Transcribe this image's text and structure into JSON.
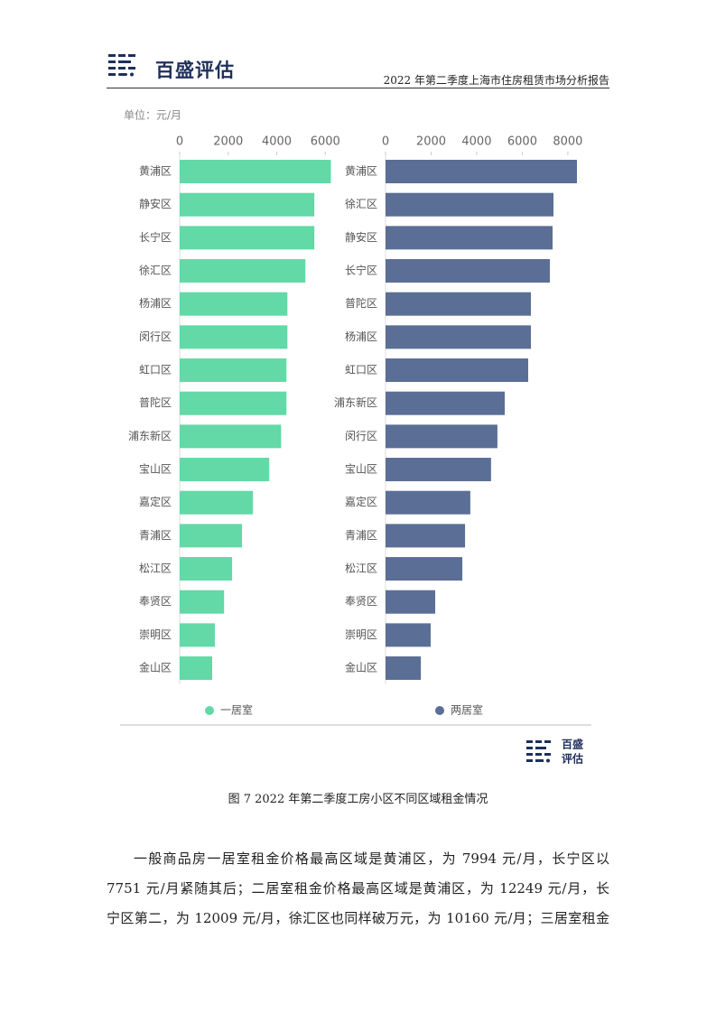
{
  "header": {
    "logo": "百盛评估",
    "title": "2022 年第二季度上海市住房租赁市场分析报告"
  },
  "chart_data": [
    {
      "type": "bar",
      "orientation": "horizontal",
      "unit": "单位：元/月",
      "categories": [
        "黄浦区",
        "静安区",
        "长宁区",
        "徐汇区",
        "杨浦区",
        "闵行区",
        "虹口区",
        "普陀区",
        "浦东新区",
        "宝山区",
        "嘉定区",
        "青浦区",
        "松江区",
        "奉贤区",
        "崇明区",
        "金山区"
      ],
      "series": [
        {
          "name": "一居室",
          "color": "#62d9a6",
          "values": [
            6230,
            5550,
            5550,
            5180,
            4440,
            4440,
            4400,
            4400,
            4180,
            3690,
            3020,
            2570,
            2160,
            1830,
            1450,
            1340
          ]
        }
      ],
      "xlim": [
        0,
        6400
      ],
      "xticks": [
        0,
        2000,
        4000,
        6000
      ]
    },
    {
      "type": "bar",
      "orientation": "horizontal",
      "categories": [
        "黄浦区",
        "徐汇区",
        "静安区",
        "长宁区",
        "普陀区",
        "杨浦区",
        "虹口区",
        "浦东新区",
        "闵行区",
        "宝山区",
        "嘉定区",
        "青浦区",
        "松江区",
        "奉贤区",
        "崇明区",
        "金山区"
      ],
      "series": [
        {
          "name": "两居室",
          "color": "#5b6e96",
          "values": [
            8400,
            7370,
            7330,
            7210,
            6380,
            6380,
            6260,
            5230,
            4910,
            4630,
            3720,
            3490,
            3370,
            2180,
            1980,
            1550
          ]
        }
      ],
      "xlim": [
        0,
        8400
      ],
      "xticks": [
        0,
        2000,
        4000,
        6000,
        8000
      ]
    }
  ],
  "badge": [
    "百盛",
    "评估"
  ],
  "caption": "图 7 2022 年第二季度工房小区不同区域租金情况",
  "paragraph": [
    "一般商品房一居室租金价格最高区域是黄浦区，为 7994 元/月，长宁区以",
    "7751 元/月紧随其后；二居室租金价格最高区域是黄浦区，为 12249 元/月，长",
    "宁区第二，为 12009 元/月，徐汇区也同样破万元，为 10160 元/月；三居室租金"
  ]
}
